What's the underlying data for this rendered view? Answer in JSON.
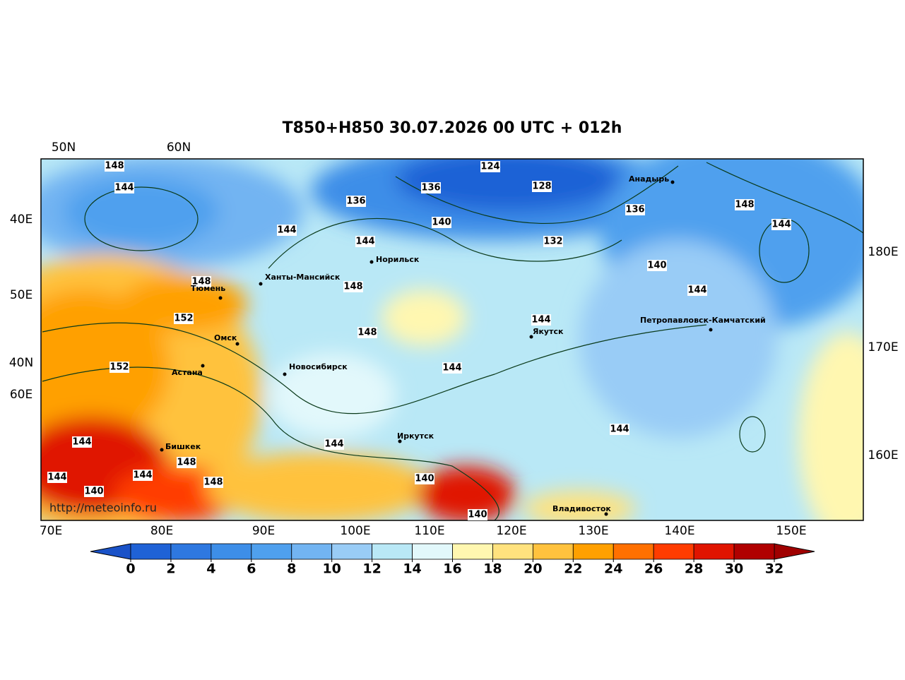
{
  "title": "T850+H850 30.07.2026 00 UTC + 012h",
  "lat_labels_top": [
    "50N",
    "60N"
  ],
  "left_labels": [
    "40E",
    "50E",
    "40N",
    "60E"
  ],
  "right_labels": [
    "180E",
    "170E",
    "160E"
  ],
  "bottom_labels": [
    "70E",
    "80E",
    "90E",
    "100E",
    "110E",
    "120E",
    "130E",
    "140E",
    "150E"
  ],
  "contour_labels": [
    148,
    144,
    124,
    136,
    128,
    136,
    148,
    140,
    136,
    144,
    144,
    144,
    132,
    140,
    148,
    148,
    144,
    152,
    148,
    144,
    152,
    144,
    144,
    144,
    144,
    148,
    144,
    144,
    148,
    140,
    140,
    140
  ],
  "cities": [
    "Анадырь",
    "Норильск",
    "Ханты-Мансийск",
    "Тюмень",
    "Якутск",
    "Петропавловск-Камчатский",
    "Омск",
    "Астана",
    "Новосибирск",
    "Иркутск",
    "Бишкек",
    "Владивосток"
  ],
  "watermark": "http://meteoinfo.ru",
  "colorbar": {
    "ticks": [
      0,
      2,
      4,
      6,
      8,
      10,
      12,
      14,
      16,
      18,
      20,
      22,
      24,
      26,
      28,
      30,
      32
    ],
    "colors": [
      "#1f62d6",
      "#2e78e0",
      "#3d8ee8",
      "#4fa0ee",
      "#72b4f2",
      "#99ccf6",
      "#b9e8f6",
      "#e2f8fb",
      "#fff7b0",
      "#ffe27e",
      "#ffc23e",
      "#ffa000",
      "#ff7000",
      "#ff3c00",
      "#e01400",
      "#b00000"
    ],
    "under_color": "#1a52c8",
    "over_color": "#a00000"
  }
}
